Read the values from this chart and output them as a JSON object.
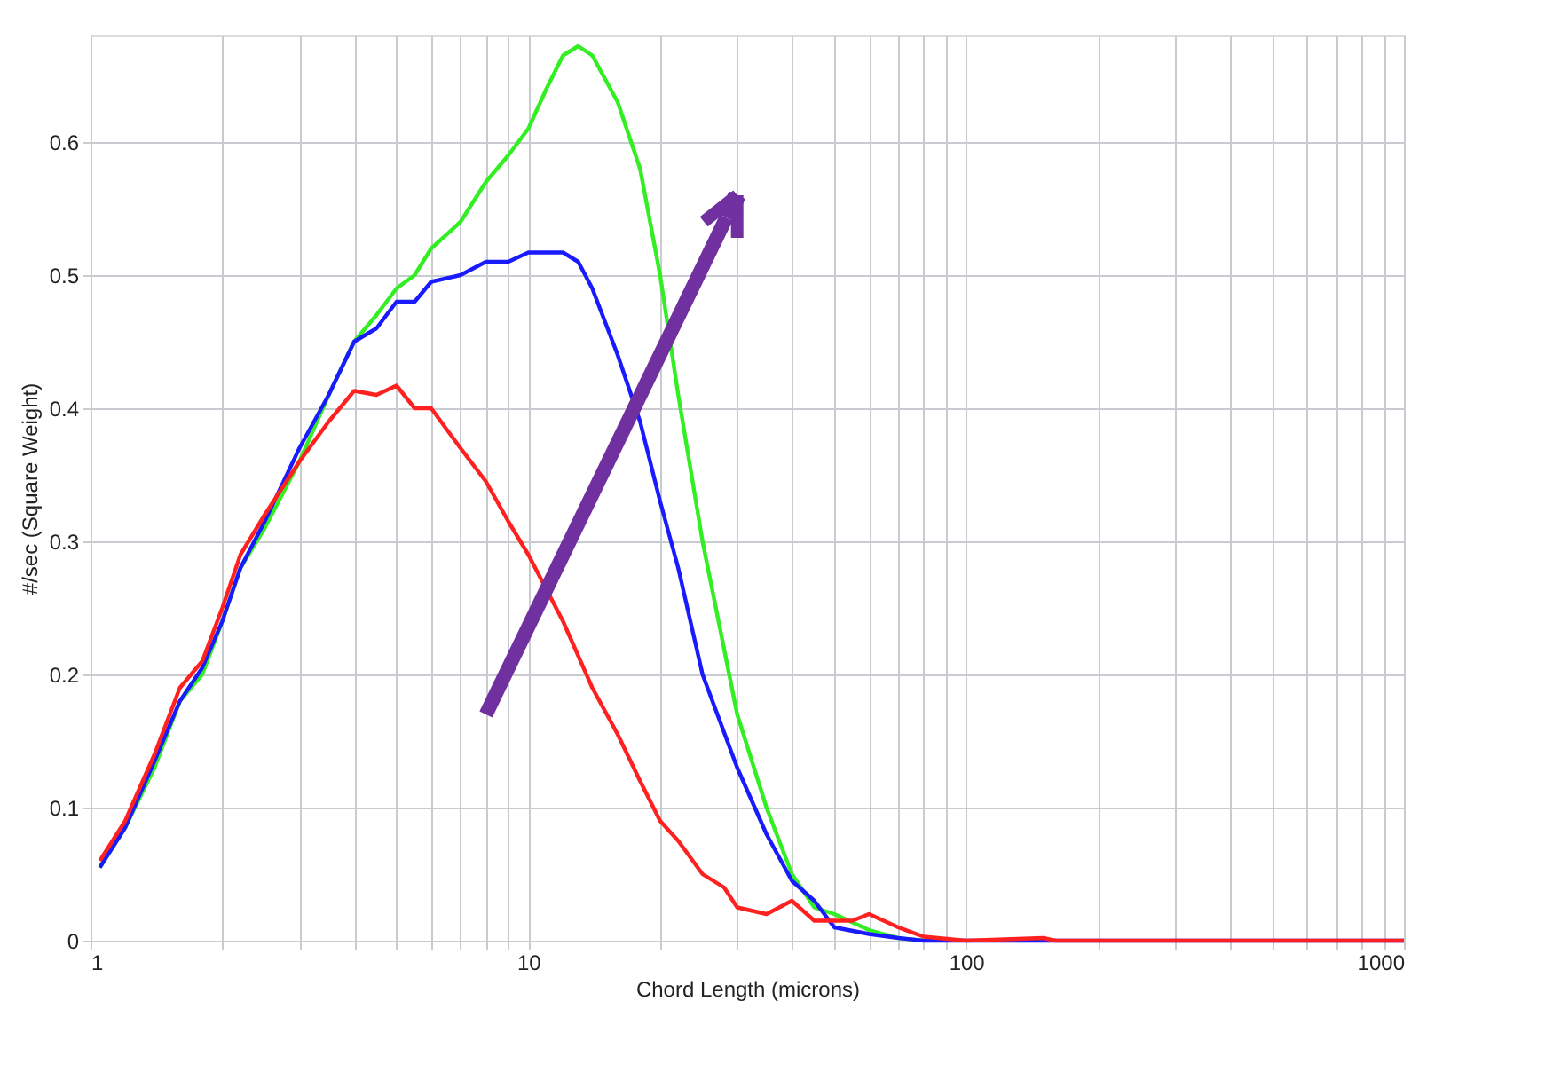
{
  "chart_data": {
    "type": "line",
    "xlabel": "Chord Length (microns)",
    "ylabel": "#/sec (Square Weight)",
    "log": "x",
    "grid": true,
    "legend": false,
    "marker": "none",
    "line_style": "solid",
    "xlim": [
      1,
      1000
    ],
    "ylim": [
      0,
      0.68
    ],
    "yticks": [
      0,
      0.1,
      0.2,
      0.3,
      0.4,
      0.5,
      0.6
    ],
    "xticks": [
      1,
      {
        "value": 2,
        "label": null
      },
      {
        "value": 3,
        "label": null
      },
      {
        "value": 4,
        "label": null
      },
      {
        "value": 5,
        "label": null
      },
      {
        "value": 6,
        "label": null
      },
      {
        "value": 7,
        "label": null
      },
      {
        "value": 8,
        "label": null
      },
      {
        "value": 9,
        "label": null
      },
      10,
      {
        "value": 20,
        "label": null
      },
      {
        "value": 30,
        "label": null
      },
      {
        "value": 40,
        "label": null
      },
      {
        "value": 50,
        "label": null
      },
      {
        "value": 60,
        "label": null
      },
      {
        "value": 70,
        "label": null
      },
      {
        "value": 80,
        "label": null
      },
      {
        "value": 90,
        "label": null
      },
      100,
      {
        "value": 200,
        "label": null
      },
      {
        "value": 300,
        "label": null
      },
      {
        "value": 400,
        "label": null
      },
      {
        "value": 500,
        "label": null
      },
      {
        "value": 600,
        "label": null
      },
      {
        "value": 700,
        "label": null
      },
      {
        "value": 800,
        "label": null
      },
      {
        "value": 900,
        "label": null
      },
      1000
    ],
    "series": [
      {
        "color": "#33ee22",
        "x": [
          1.05,
          1.2,
          1.4,
          1.6,
          1.8,
          2,
          2.2,
          2.5,
          3,
          3.5,
          4,
          4.5,
          5,
          5.5,
          6,
          7,
          8,
          9,
          10,
          11,
          12,
          13,
          14,
          16,
          18,
          20,
          22,
          25,
          30,
          35,
          40,
          45,
          50,
          60,
          70,
          80
        ],
        "values": [
          0.055,
          0.085,
          0.13,
          0.18,
          0.2,
          0.24,
          0.28,
          0.31,
          0.36,
          0.41,
          0.45,
          0.47,
          0.49,
          0.5,
          0.52,
          0.54,
          0.57,
          0.59,
          0.61,
          0.64,
          0.665,
          0.672,
          0.665,
          0.63,
          0.58,
          0.5,
          0.41,
          0.3,
          0.17,
          0.1,
          0.05,
          0.025,
          0.02,
          0.008,
          0.002,
          0
        ]
      },
      {
        "color": "#1a1aff",
        "x": [
          1.05,
          1.2,
          1.4,
          1.6,
          1.8,
          2,
          2.2,
          2.5,
          3,
          3.5,
          4,
          4.5,
          5,
          5.5,
          6,
          7,
          8,
          9,
          10,
          12,
          13,
          14,
          16,
          18,
          20,
          22,
          25,
          30,
          35,
          40,
          45,
          50,
          60,
          70,
          80,
          100,
          1000
        ],
        "values": [
          0.055,
          0.085,
          0.135,
          0.18,
          0.205,
          0.24,
          0.28,
          0.315,
          0.37,
          0.41,
          0.45,
          0.46,
          0.48,
          0.48,
          0.495,
          0.5,
          0.51,
          0.51,
          0.517,
          0.517,
          0.51,
          0.49,
          0.44,
          0.39,
          0.33,
          0.28,
          0.2,
          0.13,
          0.08,
          0.045,
          0.03,
          0.01,
          0.005,
          0.002,
          0,
          0,
          0
        ]
      },
      {
        "color": "#ff2020",
        "x": [
          1.05,
          1.2,
          1.4,
          1.6,
          1.8,
          2,
          2.2,
          2.5,
          3,
          3.5,
          4,
          4.5,
          5,
          5.5,
          6,
          7,
          8,
          9,
          10,
          12,
          14,
          16,
          18,
          20,
          22,
          25,
          28,
          30,
          35,
          40,
          45,
          55,
          60,
          70,
          80,
          100,
          150,
          160,
          1000
        ],
        "values": [
          0.06,
          0.09,
          0.14,
          0.19,
          0.21,
          0.25,
          0.29,
          0.32,
          0.36,
          0.39,
          0.413,
          0.41,
          0.417,
          0.4,
          0.4,
          0.37,
          0.345,
          0.315,
          0.29,
          0.24,
          0.19,
          0.155,
          0.12,
          0.09,
          0.075,
          0.05,
          0.04,
          0.025,
          0.02,
          0.03,
          0.015,
          0.015,
          0.02,
          0.01,
          0.003,
          0,
          0.002,
          0,
          0
        ]
      }
    ]
  }
}
